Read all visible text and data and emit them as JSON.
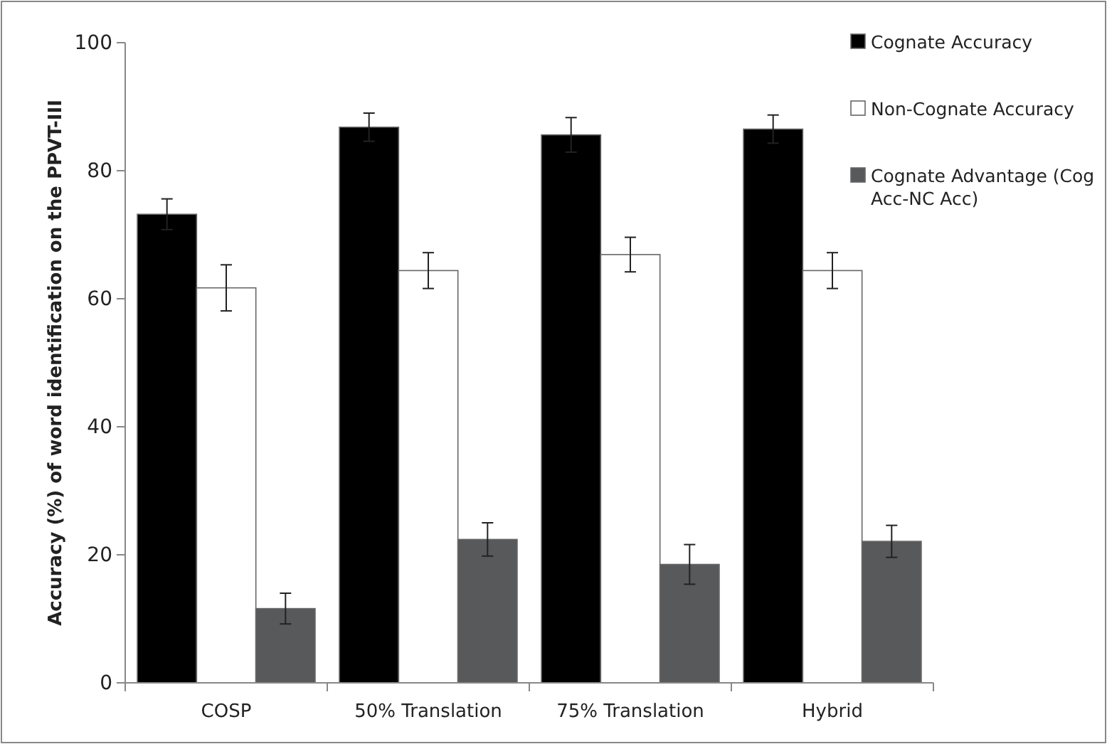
{
  "chart_data": {
    "type": "bar",
    "ylabel": "Accuracy (%) of word identification on the PPVT-III",
    "categories": [
      "COSP",
      "50% Translation",
      "75% Translation",
      "Hybrid"
    ],
    "series": [
      {
        "name": "Cognate Accuracy",
        "color": "#000000",
        "values": [
          73.2,
          86.8,
          85.6,
          86.5
        ],
        "errors": [
          2.4,
          2.2,
          2.7,
          2.2
        ]
      },
      {
        "name": "Non-Cognate Accuracy",
        "color": "#ffffff",
        "values": [
          61.7,
          64.4,
          66.9,
          64.4
        ],
        "errors": [
          3.6,
          2.8,
          2.7,
          2.8
        ]
      },
      {
        "name": "Cognate Advantage (Cog Acc-NC Acc)",
        "color": "#58595b",
        "values": [
          11.6,
          22.4,
          18.5,
          22.1
        ],
        "errors": [
          2.4,
          2.6,
          3.1,
          2.5
        ]
      }
    ],
    "ylim": [
      0,
      100
    ],
    "yticks": [
      0,
      20,
      40,
      60,
      80,
      100
    ],
    "grid": false,
    "legend": "right"
  }
}
